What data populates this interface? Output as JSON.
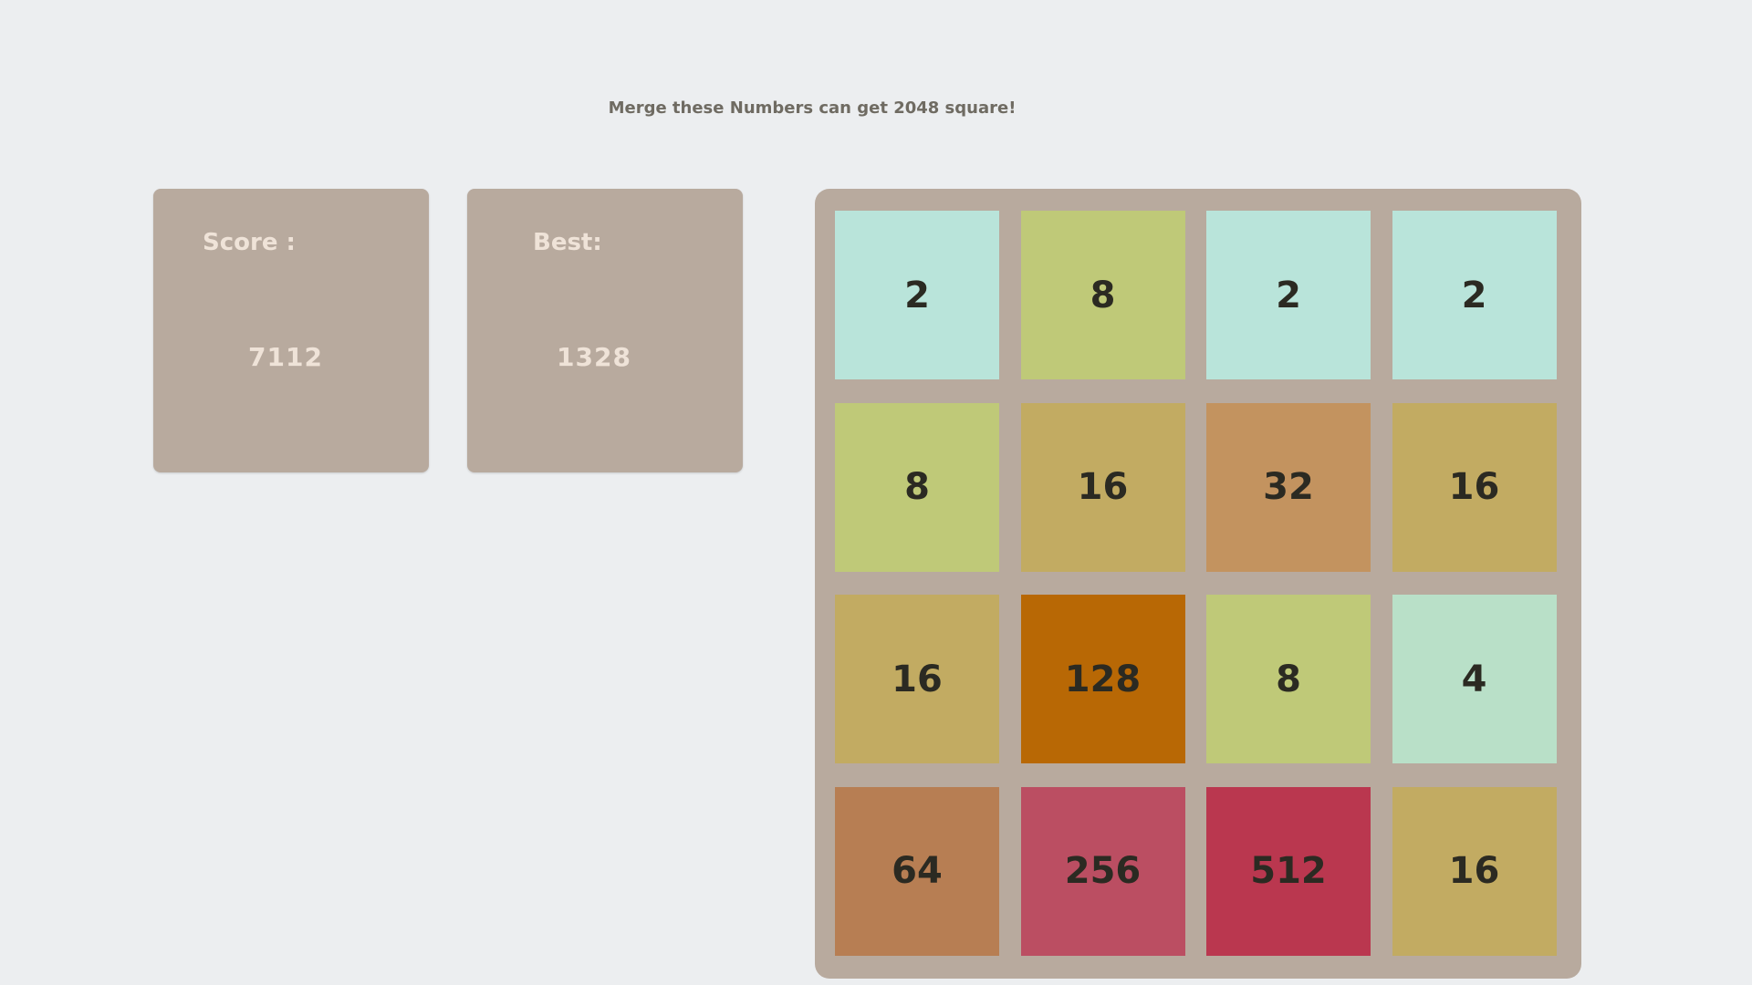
{
  "header": {
    "subtitle": "Merge these Numbers can get 2048 square!"
  },
  "score": {
    "label": "Score :",
    "value": "7112"
  },
  "best": {
    "label": "Best:",
    "value": "1328"
  },
  "board": {
    "rows": [
      [
        "2",
        "8",
        "2",
        "2"
      ],
      [
        "8",
        "16",
        "32",
        "16"
      ],
      [
        "16",
        "128",
        "8",
        "4"
      ],
      [
        "64",
        "256",
        "512",
        "16"
      ]
    ]
  },
  "tile_colors": {
    "2": "#b9e4da",
    "4": "#b9e0c8",
    "8": "#bfc978",
    "16": "#c2ab62",
    "32": "#c3935f",
    "64": "#b77e53",
    "128": "#b86805",
    "256": "#bb4e62",
    "512": "#ba374f"
  }
}
